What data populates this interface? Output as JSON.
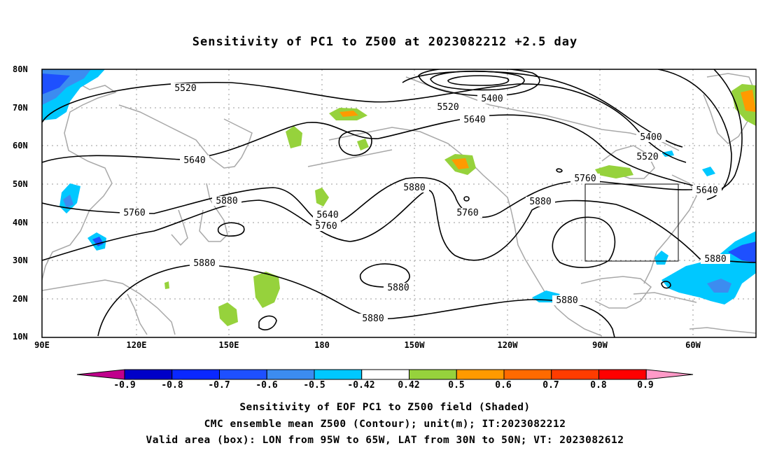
{
  "title": "Sensitivity of PC1 to Z500 at 2023082212 +2.5 day",
  "map": {
    "lat_labels": [
      "80N",
      "70N",
      "60N",
      "50N",
      "40N",
      "30N",
      "20N",
      "10N"
    ],
    "lon_labels": [
      "90E",
      "120E",
      "150E",
      "180",
      "150W",
      "120W",
      "90W",
      "60W"
    ],
    "contour_labels": [
      "5520",
      "5400",
      "5520",
      "5640",
      "5640",
      "5400",
      "5520",
      "5640",
      "5760",
      "5760",
      "5880",
      "5880",
      "5640",
      "5760",
      "5880",
      "5760",
      "5880",
      "5880",
      "5880",
      "5880",
      "5880",
      "5880"
    ],
    "valid_box": {
      "lon_from": "95W",
      "lon_to": "65W",
      "lat_from": "30N",
      "lat_to": "50N"
    }
  },
  "colorbar": {
    "labels": [
      "-0.9",
      "-0.8",
      "-0.7",
      "-0.6",
      "-0.5",
      "-0.42",
      "0.42",
      "0.5",
      "0.6",
      "0.7",
      "0.8",
      "0.9"
    ],
    "colors": [
      "#c0008c",
      "#0000c8",
      "#0a28ff",
      "#1e50ff",
      "#3c8cf0",
      "#00c8ff",
      "#ffffff",
      "#96d23c",
      "#ff9a00",
      "#ff6a00",
      "#ff3c00",
      "#ff0000",
      "#ff9ac8"
    ]
  },
  "captions": {
    "line1": "Sensitivity of EOF PC1 to Z500 field (Shaded)",
    "line2": "CMC ensemble mean Z500 (Contour); unit(m); IT:2023082212",
    "line3": "Valid area (box): LON from 95W to 65W, LAT from 30N to 50N; VT: 2023082612"
  }
}
